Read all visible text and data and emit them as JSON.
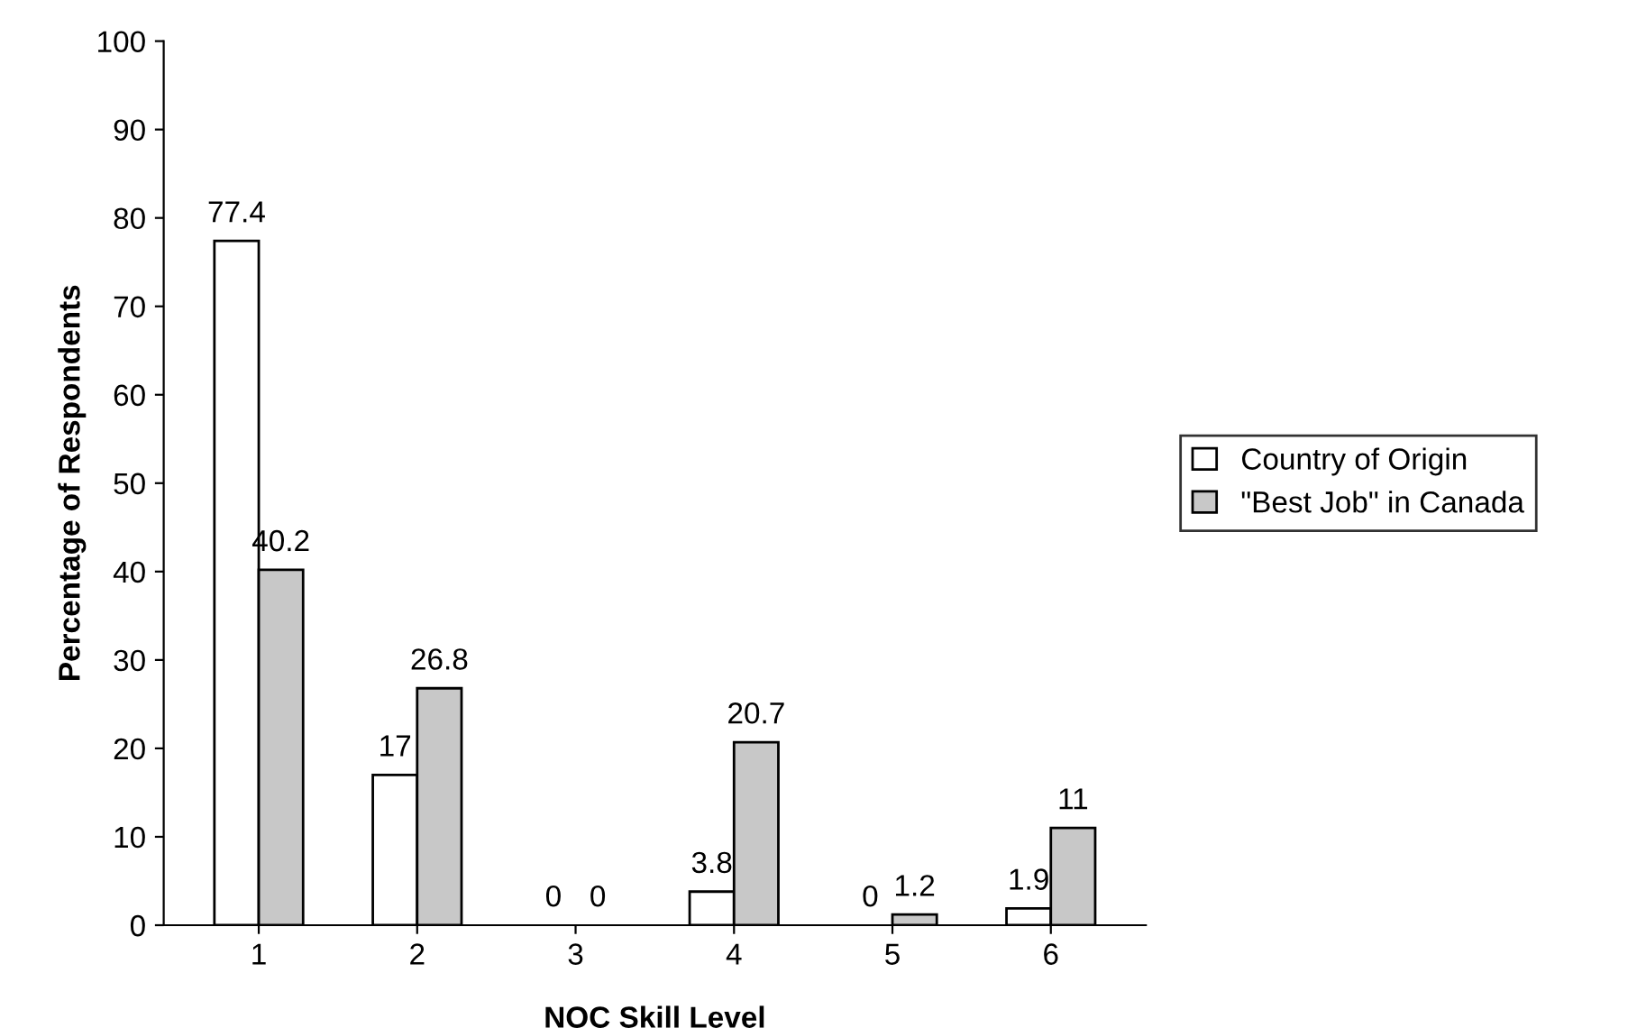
{
  "chart_data": {
    "type": "bar",
    "xlabel": "NOC Skill Level",
    "ylabel": "Percentage of Respondents",
    "categories": [
      "1",
      "2",
      "3",
      "4",
      "5",
      "6"
    ],
    "series": [
      {
        "name": "Country of Origin",
        "color": "#ffffff",
        "values": [
          77.4,
          17,
          0,
          3.8,
          0,
          1.9
        ]
      },
      {
        "name": "\"Best Job\" in Canada",
        "color": "#c8c8c8",
        "values": [
          40.2,
          26.8,
          0,
          20.7,
          1.2,
          11
        ]
      }
    ],
    "ylim": [
      0,
      100
    ],
    "yticks": [
      0,
      10,
      20,
      30,
      40,
      50,
      60,
      70,
      80,
      90,
      100
    ],
    "data_labels": true,
    "legend": "right",
    "grid": false
  }
}
